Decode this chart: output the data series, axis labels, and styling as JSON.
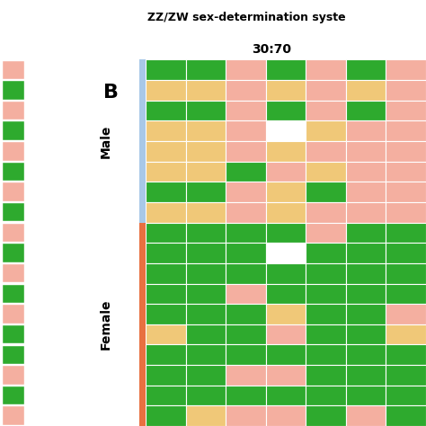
{
  "title_top": "ZZ/ZW sex-determination syste",
  "subtitle": "30:70",
  "panel_label": "B",
  "colors": {
    "green": "#2EAA2E",
    "tan": "#F0C878",
    "pink": "#F4AFA0",
    "white": "#FFFFFF",
    "blue_bar": "#A8C8E8",
    "orange_bar": "#E87040"
  },
  "header_bg": "#DCDCDC",
  "male_rows": [
    [
      0,
      0,
      2,
      0,
      2,
      0,
      2
    ],
    [
      1,
      1,
      2,
      1,
      2,
      1,
      2
    ],
    [
      0,
      0,
      2,
      0,
      2,
      0,
      2
    ],
    [
      1,
      1,
      2,
      3,
      1,
      2,
      2
    ],
    [
      1,
      1,
      2,
      1,
      2,
      2,
      2
    ],
    [
      1,
      1,
      0,
      2,
      1,
      2,
      2
    ],
    [
      0,
      0,
      2,
      1,
      0,
      2,
      2
    ],
    [
      1,
      1,
      2,
      1,
      2,
      2,
      2
    ]
  ],
  "female_rows": [
    [
      0,
      0,
      0,
      0,
      2,
      0,
      0
    ],
    [
      0,
      0,
      0,
      3,
      0,
      0,
      0
    ],
    [
      0,
      0,
      0,
      0,
      0,
      0,
      0
    ],
    [
      0,
      0,
      2,
      0,
      0,
      0,
      0
    ],
    [
      0,
      0,
      0,
      1,
      0,
      0,
      2
    ],
    [
      1,
      0,
      0,
      2,
      0,
      0,
      1
    ],
    [
      0,
      0,
      0,
      0,
      0,
      0,
      0
    ],
    [
      0,
      0,
      2,
      2,
      0,
      0,
      0
    ],
    [
      0,
      0,
      0,
      0,
      0,
      0,
      0
    ],
    [
      0,
      1,
      2,
      2,
      0,
      2,
      0
    ]
  ],
  "left_strip_male": [
    2,
    0,
    2,
    0,
    2,
    0,
    2,
    0
  ],
  "left_strip_female": [
    2,
    0,
    2,
    0,
    2,
    0,
    0,
    2,
    0,
    2
  ],
  "num_cols": 7,
  "n_male": 8,
  "n_female": 10
}
